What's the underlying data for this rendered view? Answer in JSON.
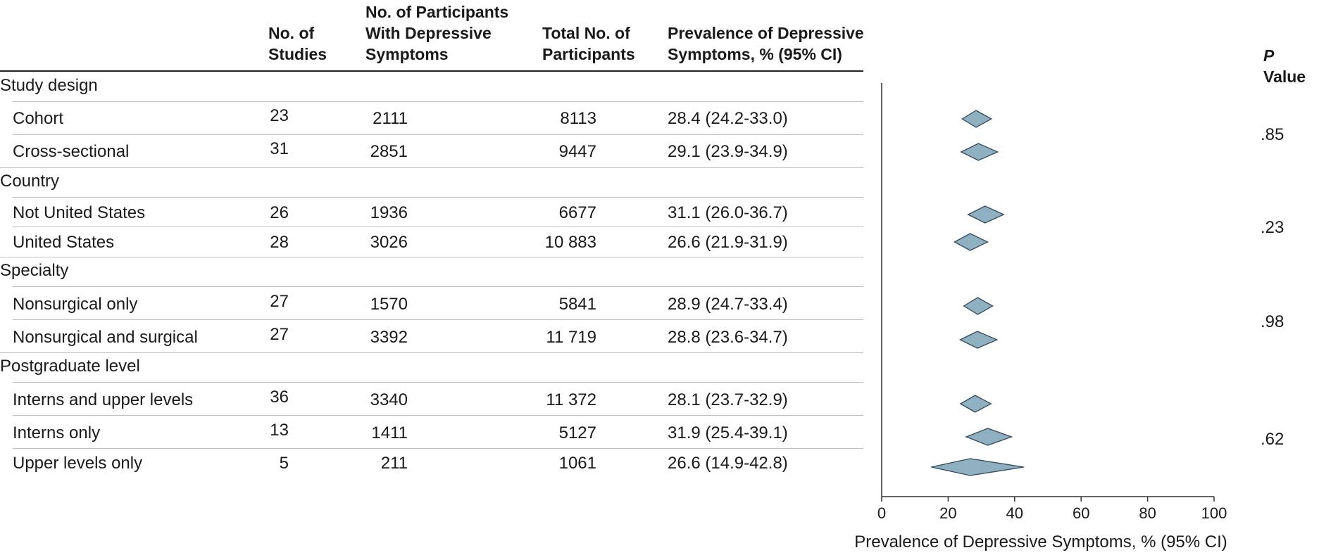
{
  "headers": {
    "studies": [
      "No. of",
      "Studies"
    ],
    "depressed": [
      "No. of Participants",
      "With Depressive",
      "Symptoms"
    ],
    "total": [
      "Total No. of",
      "Participants"
    ],
    "prevalence": [
      "Prevalence of Depressive",
      "Symptoms, % (95% CI)"
    ],
    "p_italic": "P",
    "p_rest": " Value"
  },
  "groups": [
    {
      "label": "Study design",
      "p": ".85",
      "rows": [
        {
          "label": "Cohort",
          "studies": "23",
          "depressed": "2111",
          "total": "8113",
          "prev": "28.4 (24.2-33.0)"
        },
        {
          "label": "Cross-sectional",
          "studies": "31",
          "depressed": "2851",
          "total": "9447",
          "prev": "29.1 (23.9-34.9)"
        }
      ]
    },
    {
      "label": "Country",
      "p": ".23",
      "rows": [
        {
          "label": "Not United States",
          "studies": "26",
          "depressed": "1936",
          "total": "6677",
          "prev": "31.1 (26.0-36.7)"
        },
        {
          "label": "United States",
          "studies": "28",
          "depressed": "3026",
          "total": "10 883",
          "prev": "26.6 (21.9-31.9)"
        }
      ]
    },
    {
      "label": "Specialty",
      "p": ".98",
      "rows": [
        {
          "label": "Nonsurgical only",
          "studies": "27",
          "depressed": "1570",
          "total": "5841",
          "prev": "28.9 (24.7-33.4)"
        },
        {
          "label": "Nonsurgical and surgical",
          "studies": "27",
          "depressed": "3392",
          "total": "11 719",
          "prev": "28.8 (23.6-34.7)"
        }
      ]
    },
    {
      "label": "Postgraduate level",
      "p": ".62",
      "rows": [
        {
          "label": "Interns and upper levels",
          "studies": "36",
          "depressed": "3340",
          "total": "11 372",
          "prev": "28.1 (23.7-32.9)"
        },
        {
          "label": "Interns only",
          "studies": "13",
          "depressed": "1411",
          "total": "5127",
          "prev": "31.9 (25.4-39.1)"
        },
        {
          "label": "Upper levels only",
          "studies": "5",
          "depressed": "211",
          "total": "1061",
          "prev": "26.6 (14.9-42.8)"
        }
      ]
    }
  ],
  "chart_data": {
    "type": "forest",
    "xlabel": "Prevalence of Depressive Symptoms, % (95% CI)",
    "xlim": [
      0,
      100
    ],
    "xticks": [
      0,
      20,
      40,
      60,
      80,
      100
    ],
    "marker": "diamond",
    "marker_fill": "#8fb0c1",
    "marker_stroke": "#34495e",
    "series": [
      {
        "category": "Cohort",
        "estimate": 28.4,
        "ci": [
          24.2,
          33.0
        ]
      },
      {
        "category": "Cross-sectional",
        "estimate": 29.1,
        "ci": [
          23.9,
          34.9
        ]
      },
      {
        "category": "Not United States",
        "estimate": 31.1,
        "ci": [
          26.0,
          36.7
        ]
      },
      {
        "category": "United States",
        "estimate": 26.6,
        "ci": [
          21.9,
          31.9
        ]
      },
      {
        "category": "Nonsurgical only",
        "estimate": 28.9,
        "ci": [
          24.7,
          33.4
        ]
      },
      {
        "category": "Nonsurgical and surgical",
        "estimate": 28.8,
        "ci": [
          23.6,
          34.7
        ]
      },
      {
        "category": "Interns and upper levels",
        "estimate": 28.1,
        "ci": [
          23.7,
          32.9
        ]
      },
      {
        "category": "Interns only",
        "estimate": 31.9,
        "ci": [
          25.4,
          39.1
        ]
      },
      {
        "category": "Upper levels only",
        "estimate": 26.6,
        "ci": [
          14.9,
          42.8
        ]
      }
    ]
  }
}
